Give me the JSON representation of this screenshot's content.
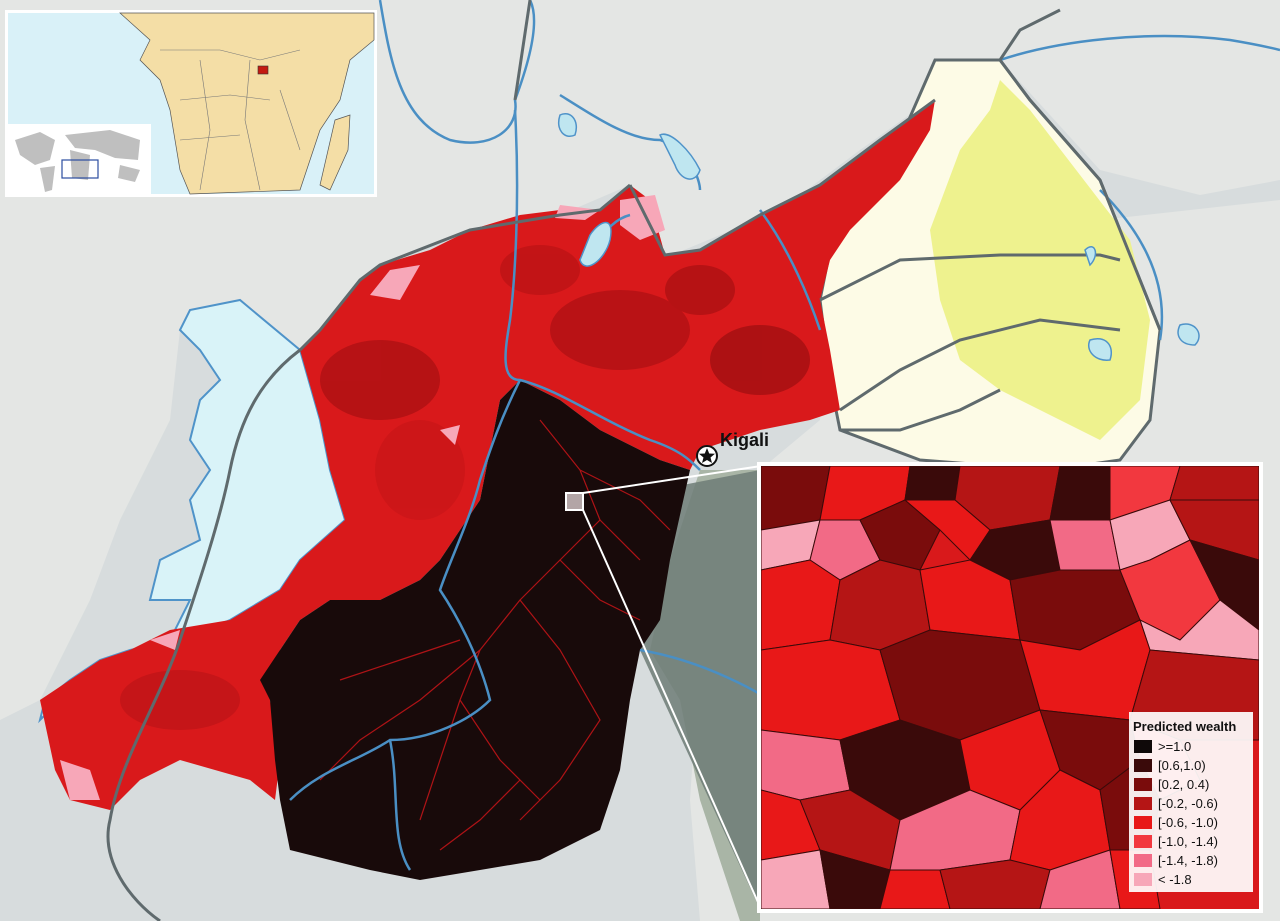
{
  "map": {
    "city_label": "Kigali",
    "colors": {
      "ocean": "#d7dcdd",
      "land": "#e4e6e4",
      "lake_fill": "#bfe6f0",
      "lake_blue": "#4f93c9",
      "lake_edge_blue": "#d9f3f8",
      "river": "#4a8fc4",
      "border": "#5f6a6d",
      "tanzania_fill": "#fdfbe6",
      "park_fill": "#eef28e",
      "rwanda_red": "#d9191b",
      "kigali_dark": "#180a0a",
      "zoom_callout": "#6f7d77"
    }
  },
  "inset": {
    "ocean": "#d9f1f8",
    "land": "#f4dea6",
    "highlight": "#c41a10",
    "world_land": "#bfbfbf"
  },
  "legend": {
    "title": "Predicted wealth",
    "items": [
      {
        "label": ">=1.0",
        "color": "#0f0909"
      },
      {
        "label": "[0.6,1.0)",
        "color": "#3a0a0a"
      },
      {
        "label": "[0.2, 0.4)",
        "color": "#7a0c0c"
      },
      {
        "label": "[-0.2, -0.6)",
        "color": "#b51515"
      },
      {
        "label": "[-0.6, -1.0)",
        "color": "#e81818"
      },
      {
        "label": "[-1.0, -1.4)",
        "color": "#f2383f"
      },
      {
        "label": "[-1.4, -1.8)",
        "color": "#f26a86"
      },
      {
        "label": "< -1.8",
        "color": "#f7a7b8"
      }
    ]
  }
}
